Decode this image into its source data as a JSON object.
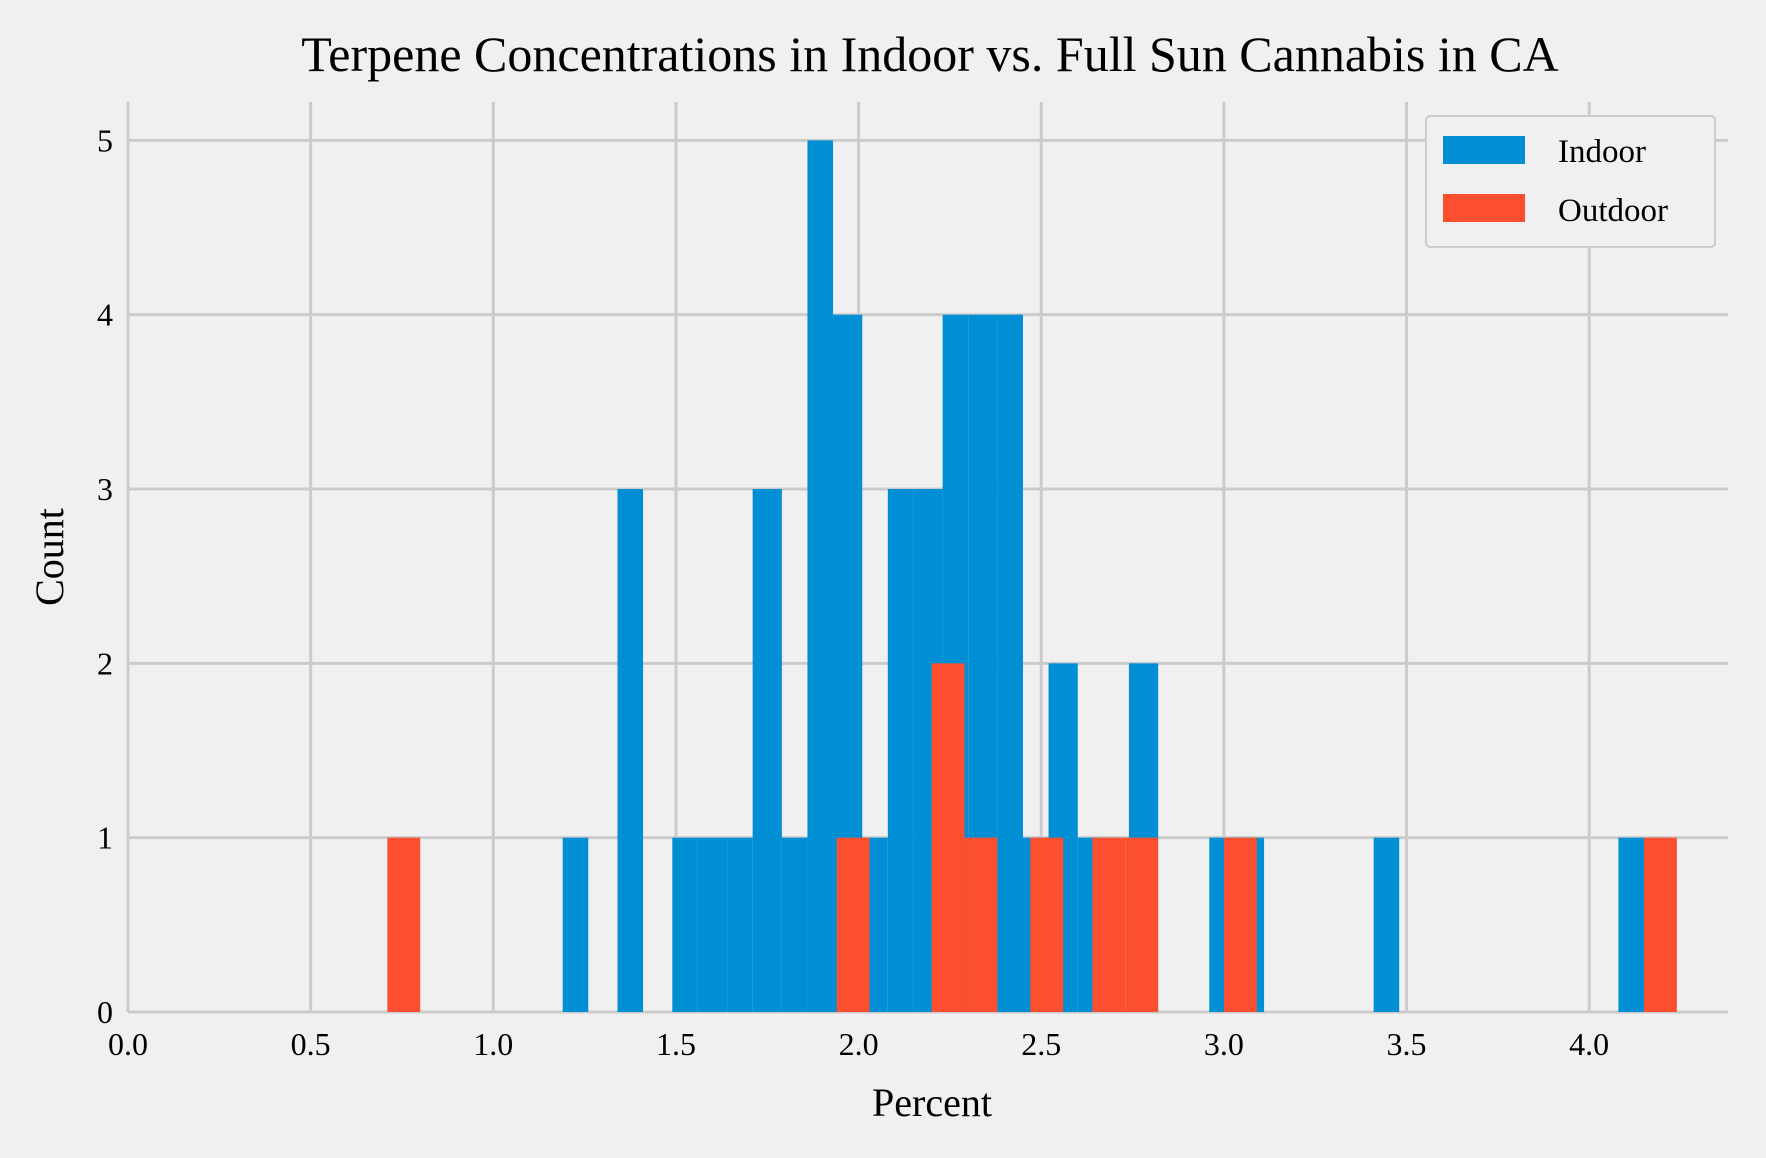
{
  "chart_data": {
    "type": "bar",
    "title": "Terpene Concentrations in Indoor vs. Full Sun Cannabis in CA",
    "xlabel": "Percent",
    "ylabel": "Count",
    "xlim": [
      0.0,
      4.38
    ],
    "ylim": [
      0,
      5.22
    ],
    "xticks": [
      "0.0",
      "0.5",
      "1.0",
      "1.5",
      "2.0",
      "2.5",
      "3.0",
      "3.5",
      "4.0"
    ],
    "yticks": [
      "0",
      "1",
      "2",
      "3",
      "4",
      "5"
    ],
    "grid": true,
    "legend_position": "top-right",
    "series": [
      {
        "name": "Indoor",
        "color": "#008fd5",
        "bins": [
          {
            "x0": 1.19,
            "x1": 1.26,
            "count": 1
          },
          {
            "x0": 1.34,
            "x1": 1.41,
            "count": 3
          },
          {
            "x0": 1.49,
            "x1": 1.56,
            "count": 1
          },
          {
            "x0": 1.56,
            "x1": 1.64,
            "count": 1
          },
          {
            "x0": 1.64,
            "x1": 1.71,
            "count": 1
          },
          {
            "x0": 1.71,
            "x1": 1.79,
            "count": 3
          },
          {
            "x0": 1.79,
            "x1": 1.86,
            "count": 1
          },
          {
            "x0": 1.86,
            "x1": 1.93,
            "count": 5
          },
          {
            "x0": 1.93,
            "x1": 2.01,
            "count": 4
          },
          {
            "x0": 2.01,
            "x1": 2.08,
            "count": 1
          },
          {
            "x0": 2.08,
            "x1": 2.15,
            "count": 3
          },
          {
            "x0": 2.15,
            "x1": 2.23,
            "count": 3
          },
          {
            "x0": 2.23,
            "x1": 2.3,
            "count": 4
          },
          {
            "x0": 2.3,
            "x1": 2.38,
            "count": 4
          },
          {
            "x0": 2.38,
            "x1": 2.45,
            "count": 4
          },
          {
            "x0": 2.45,
            "x1": 2.52,
            "count": 1
          },
          {
            "x0": 2.52,
            "x1": 2.6,
            "count": 2
          },
          {
            "x0": 2.6,
            "x1": 2.67,
            "count": 1
          },
          {
            "x0": 2.74,
            "x1": 2.82,
            "count": 2
          },
          {
            "x0": 2.96,
            "x1": 3.04,
            "count": 1
          },
          {
            "x0": 3.04,
            "x1": 3.11,
            "count": 1
          },
          {
            "x0": 3.41,
            "x1": 3.48,
            "count": 1
          },
          {
            "x0": 4.08,
            "x1": 4.15,
            "count": 1
          }
        ]
      },
      {
        "name": "Outdoor",
        "color": "#fc4f30",
        "bins": [
          {
            "x0": 0.71,
            "x1": 0.8,
            "count": 1
          },
          {
            "x0": 1.94,
            "x1": 2.03,
            "count": 1
          },
          {
            "x0": 2.2,
            "x1": 2.29,
            "count": 2
          },
          {
            "x0": 2.29,
            "x1": 2.38,
            "count": 1
          },
          {
            "x0": 2.47,
            "x1": 2.56,
            "count": 1
          },
          {
            "x0": 2.64,
            "x1": 2.73,
            "count": 1
          },
          {
            "x0": 2.73,
            "x1": 2.82,
            "count": 1
          },
          {
            "x0": 3.0,
            "x1": 3.09,
            "count": 1
          },
          {
            "x0": 4.15,
            "x1": 4.24,
            "count": 1
          }
        ]
      }
    ]
  }
}
